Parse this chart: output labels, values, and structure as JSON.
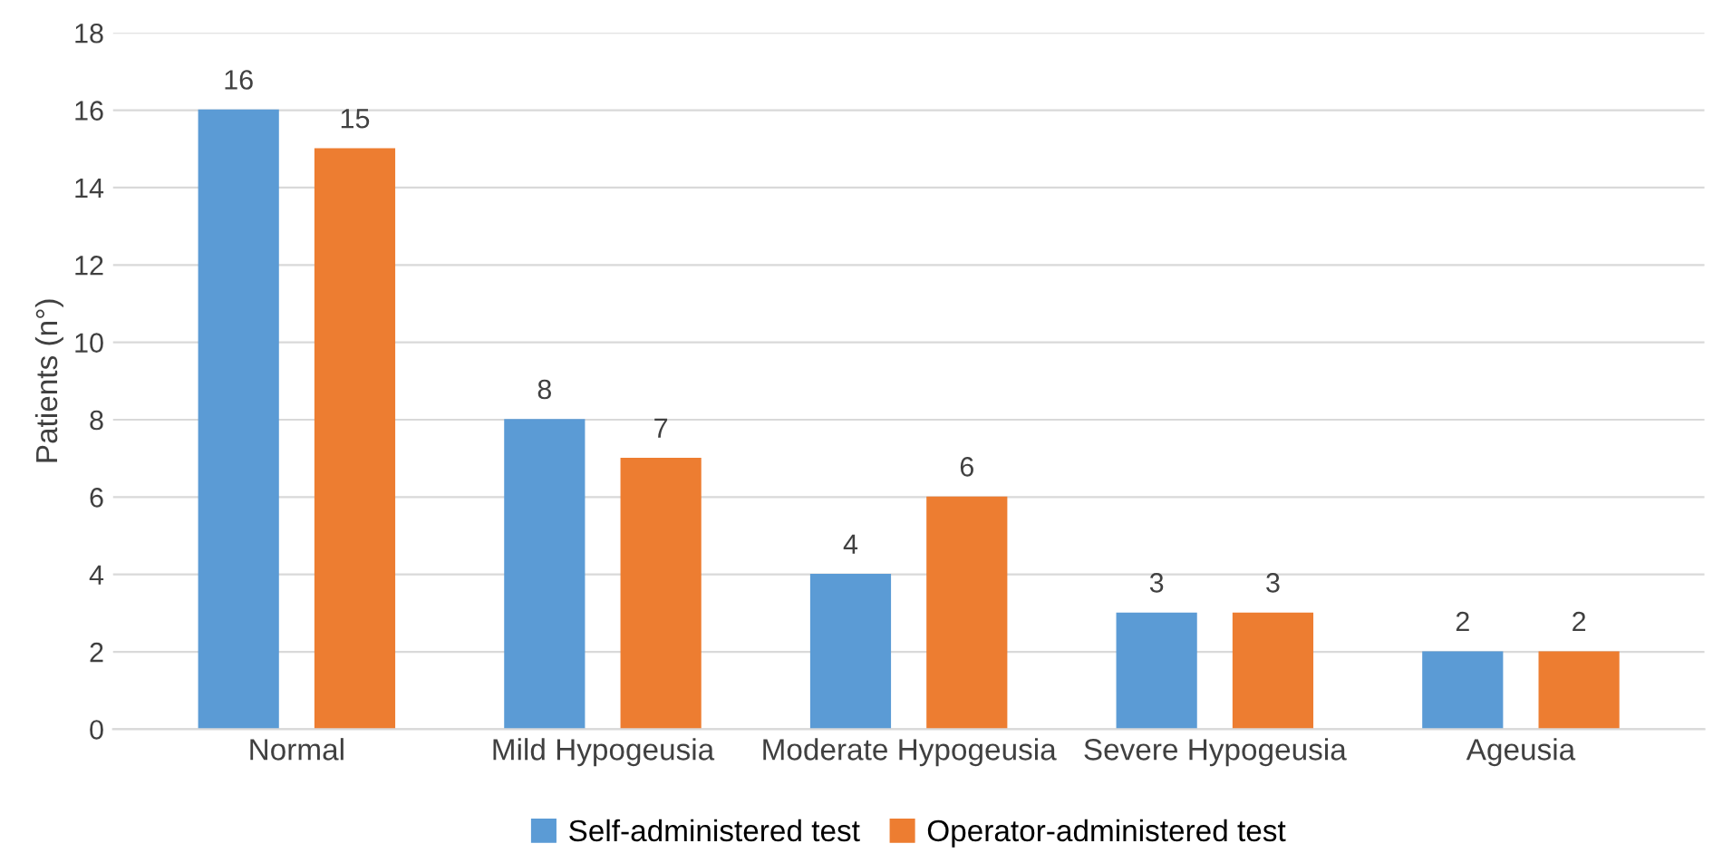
{
  "chart_data": {
    "type": "bar",
    "ylabel": "Patients (n°)",
    "categories": [
      "Normal",
      "Mild Hypogeusia",
      "Moderate Hypogeusia",
      "Severe Hypogeusia",
      "Ageusia"
    ],
    "series": [
      {
        "name": "Self-administered test",
        "color": "#5b9bd5",
        "values": [
          16,
          8,
          4,
          3,
          2
        ]
      },
      {
        "name": "Operator-administered test",
        "color": "#ed7d31",
        "values": [
          15,
          7,
          6,
          3,
          2
        ]
      }
    ],
    "ylim": [
      0,
      18
    ],
    "yticks": [
      0,
      2,
      4,
      6,
      8,
      10,
      12,
      14,
      16,
      18
    ],
    "grid": "y",
    "legend": "bottom",
    "data_labels": true
  }
}
